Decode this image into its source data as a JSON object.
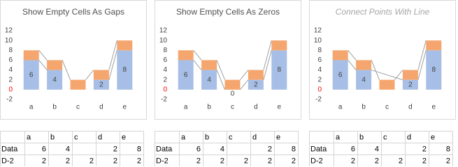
{
  "chart_data": [
    {
      "type": "bar",
      "stacked": true,
      "empty_cells": "gaps",
      "title": "Show Empty Cells As Gaps",
      "title_italic": false,
      "categories": [
        "a",
        "b",
        "c",
        "d",
        "e"
      ],
      "series": [
        {
          "name": "Data",
          "color": "#a7bfe6",
          "values": [
            6,
            4,
            null,
            2,
            8
          ]
        },
        {
          "name": "D-2",
          "color": "#f5a66e",
          "values": [
            2,
            2,
            2,
            2,
            2
          ]
        }
      ],
      "ylim": [
        -2,
        12
      ],
      "yticks": [
        -2,
        0,
        2,
        4,
        6,
        8,
        10,
        12
      ],
      "zero_tick_color": "#ff0000",
      "data_labels_series": 0
    },
    {
      "type": "bar",
      "stacked": true,
      "empty_cells": "zero",
      "title": "Show Empty Cells As Zeros",
      "title_italic": false,
      "categories": [
        "a",
        "b",
        "c",
        "d",
        "e"
      ],
      "series": [
        {
          "name": "Data",
          "color": "#a7bfe6",
          "values": [
            6,
            4,
            0,
            2,
            8
          ]
        },
        {
          "name": "D-2",
          "color": "#f5a66e",
          "values": [
            2,
            2,
            2,
            2,
            2
          ]
        }
      ],
      "ylim": [
        -2,
        12
      ],
      "yticks": [
        -2,
        0,
        2,
        4,
        6,
        8,
        10,
        12
      ],
      "zero_tick_color": "#ff0000",
      "data_labels_series": 0
    },
    {
      "type": "bar",
      "stacked": true,
      "empty_cells": "span",
      "title": "Connect Points With Line",
      "title_italic": true,
      "categories": [
        "a",
        "b",
        "c",
        "d",
        "e"
      ],
      "series": [
        {
          "name": "Data",
          "color": "#a7bfe6",
          "values": [
            6,
            4,
            null,
            2,
            8
          ]
        },
        {
          "name": "D-2",
          "color": "#f5a66e",
          "values": [
            2,
            2,
            2,
            2,
            2
          ]
        }
      ],
      "ylim": [
        -2,
        12
      ],
      "yticks": [
        -2,
        0,
        2,
        4,
        6,
        8,
        10,
        12
      ],
      "zero_tick_color": "#ff0000",
      "data_labels_series": 0
    }
  ],
  "tables": [
    {
      "columns": [
        "a",
        "b",
        "c",
        "d",
        "e"
      ],
      "rows": [
        [
          "Data",
          6,
          4,
          null,
          2,
          8
        ],
        [
          "D-2",
          2,
          2,
          2,
          2,
          2
        ]
      ]
    },
    {
      "columns": [
        "a",
        "b",
        "c",
        "d",
        "e"
      ],
      "rows": [
        [
          "Data",
          6,
          4,
          null,
          2,
          8
        ],
        [
          "D-2",
          2,
          2,
          2,
          2,
          2
        ]
      ]
    },
    {
      "columns": [
        "a",
        "b",
        "c",
        "d",
        "e"
      ],
      "rows": [
        [
          "Data",
          6,
          4,
          null,
          2,
          8
        ],
        [
          "D-2",
          2,
          2,
          2,
          2,
          2
        ]
      ]
    }
  ]
}
